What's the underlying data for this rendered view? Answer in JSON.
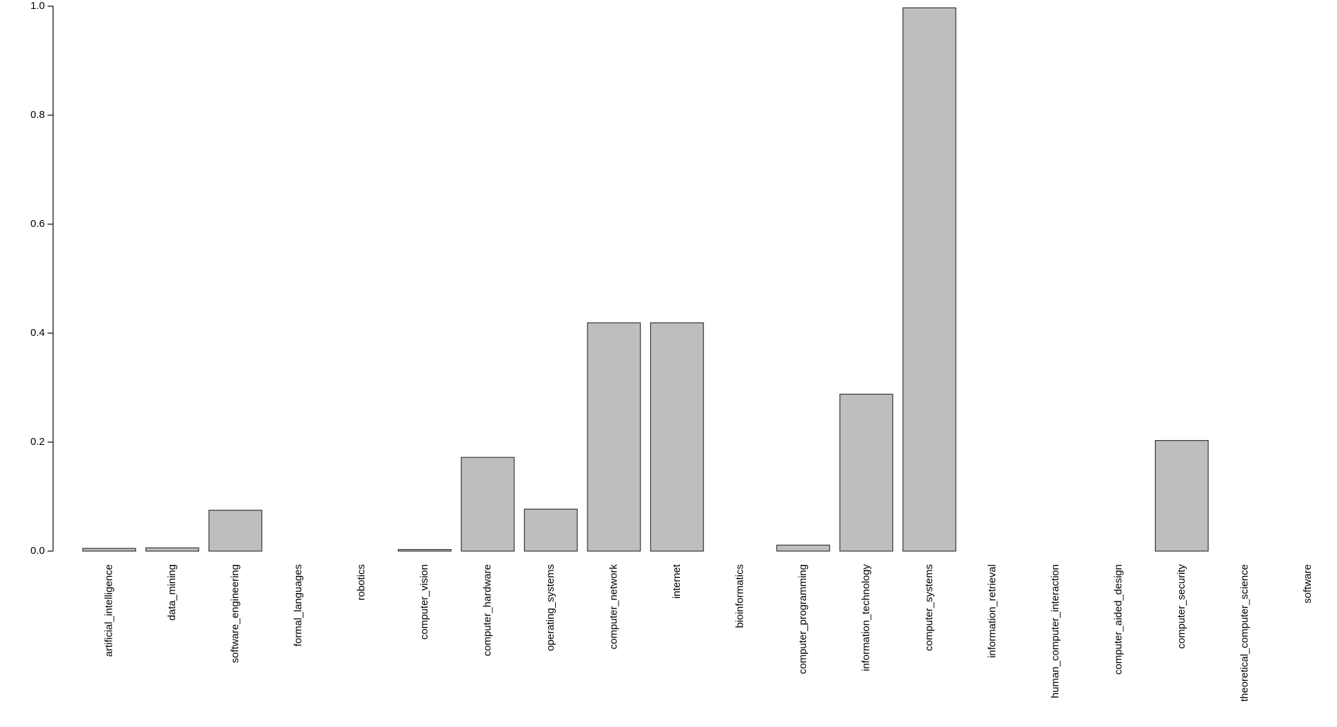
{
  "chart_data": {
    "type": "bar",
    "categories": [
      "artificial_intelligence",
      "data_mining",
      "software_engineering",
      "formal_languages",
      "robotics",
      "computer_vision",
      "computer_hardware",
      "operating_systems",
      "computer_network",
      "internet",
      "bioinformatics",
      "computer_programming",
      "information_technology",
      "computer_systems",
      "information_retrieval",
      "human_computer_interaction",
      "computer_aided_design",
      "computer_security",
      "theoretical_computer_science",
      "software"
    ],
    "values": [
      0.005,
      0.006,
      0.075,
      0,
      0,
      0.003,
      0.172,
      0.077,
      0.419,
      0.419,
      0,
      0.011,
      0.288,
      0.997,
      0,
      0,
      0,
      0.203,
      0,
      0
    ],
    "color": "#bebebe",
    "ylim": [
      0,
      1
    ],
    "yticks": [
      {
        "value": 0,
        "label": "0.0"
      },
      0.2,
      0.4,
      0.6,
      0.8,
      {
        "value": 1,
        "label": "1.0"
      }
    ],
    "grid": false
  }
}
